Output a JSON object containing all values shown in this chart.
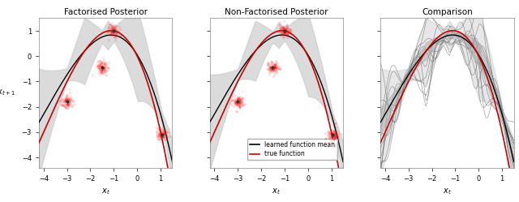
{
  "titles": [
    "Factorised Posterior",
    "Non-Factorised Posterior",
    "Comparison"
  ],
  "xlabel": "$x_t$",
  "ylabel": "$x_{t+1}$",
  "xlim": [
    -4.2,
    1.5
  ],
  "ylim": [
    -4.4,
    1.5
  ],
  "xticks": [
    -4,
    -3,
    -2,
    -1,
    0,
    1
  ],
  "yticks": [
    -4,
    -3,
    -2,
    -1,
    0,
    1
  ],
  "true_func_color": "#cc0000",
  "learned_func_color": "black",
  "shade_color_light": "#c8c8c8",
  "shade_color_dark": "#a0a0a0",
  "legend_labels": [
    "learned function mean",
    "true function"
  ],
  "obs_points_fact": [
    [
      -3.0,
      -1.8
    ],
    [
      -1.5,
      -0.45
    ],
    [
      -1.0,
      1.0
    ],
    [
      1.05,
      -3.1
    ]
  ],
  "obs_points_nonfact": [
    [
      -3.0,
      -1.8
    ],
    [
      -1.5,
      -0.45
    ],
    [
      -1.0,
      1.0
    ],
    [
      1.05,
      -3.1
    ]
  ],
  "true_poly": [
    -0.08333,
    -1.0,
    -1.9167,
    0.0
  ],
  "figsize": [
    6.4,
    2.49
  ],
  "dpi": 100
}
